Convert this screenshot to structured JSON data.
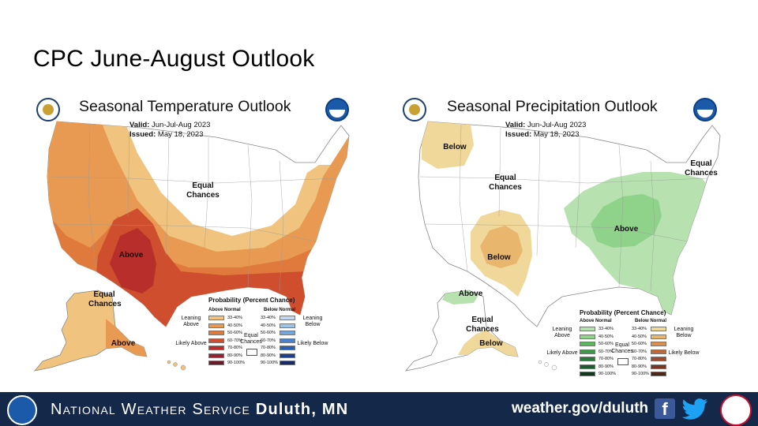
{
  "slide": {
    "title": "CPC June-August Outlook"
  },
  "temperature_map": {
    "title": "Seasonal Temperature Outlook",
    "valid_label": "Valid:",
    "valid_value": "Jun-Jul-Aug 2023",
    "issued_label": "Issued:",
    "issued_value": "May 18, 2023",
    "labels": {
      "equal_chances": "Equal Chances",
      "above": "Above",
      "ak_equal_chances": "Equal Chances",
      "ak_above": "Above"
    },
    "legend": {
      "title": "Probability (Percent Chance)",
      "above_header": "Above Normal",
      "below_header": "Below Normal",
      "leaning_above": "Leaning Above",
      "likely_above": "Likely Above",
      "leaning_below": "Leaning Below",
      "likely_below": "Likely Below",
      "equal_chances": "Equal Chances",
      "ranges": [
        "33-40%",
        "40-50%",
        "50-60%",
        "60-70%",
        "70-80%",
        "80-90%",
        "90-100%"
      ],
      "above_colors": [
        "#f0c47e",
        "#e99a52",
        "#e07a3c",
        "#cf4e2e",
        "#b82e2a",
        "#922232",
        "#6a1a28"
      ],
      "below_colors": [
        "#c4d7ef",
        "#9ec4e6",
        "#74a6db",
        "#4b82c8",
        "#2b5fb0",
        "#1d3f8c",
        "#1a2a66"
      ]
    }
  },
  "precipitation_map": {
    "title": "Seasonal Precipitation Outlook",
    "valid_label": "Valid:",
    "valid_value": "Jun-Jul-Aug 2023",
    "issued_label": "Issued:",
    "issued_value": "May 18, 2023",
    "labels": {
      "below_nw": "Below",
      "equal_chances_w": "Equal Chances",
      "below_sw": "Below",
      "equal_chances_ne": "Equal Chances",
      "above": "Above",
      "ak_above": "Above",
      "ak_equal_chances": "Equal Chances",
      "ak_below": "Below"
    },
    "legend": {
      "title": "Probability (Percent Chance)",
      "above_header": "Above Normal",
      "below_header": "Below Normal",
      "leaning_above": "Leaning Above",
      "likely_above": "Likely Above",
      "leaning_below": "Leaning Below",
      "likely_below": "Likely Below",
      "equal_chances": "Equal Chances",
      "ranges": [
        "33-40%",
        "40-50%",
        "50-60%",
        "60-70%",
        "70-80%",
        "80-90%",
        "90-100%"
      ],
      "above_colors": [
        "#b7e2b0",
        "#8fd28a",
        "#58b85c",
        "#3a9a48",
        "#277a3a",
        "#1d5c2e",
        "#113a1e"
      ],
      "below_colors": [
        "#f0d79a",
        "#e8b66c",
        "#dd8f4a",
        "#c0683a",
        "#9c4c2c",
        "#7a3620",
        "#4e2616"
      ]
    }
  },
  "footer": {
    "agency_prefix": "National Weather Service",
    "office": "Duluth, MN",
    "url": "weather.gov/duluth",
    "facebook_glyph": "f"
  },
  "icons": [
    "doc-seal-icon",
    "noaa-icon",
    "facebook-icon",
    "twitter-icon",
    "nws-icon"
  ]
}
